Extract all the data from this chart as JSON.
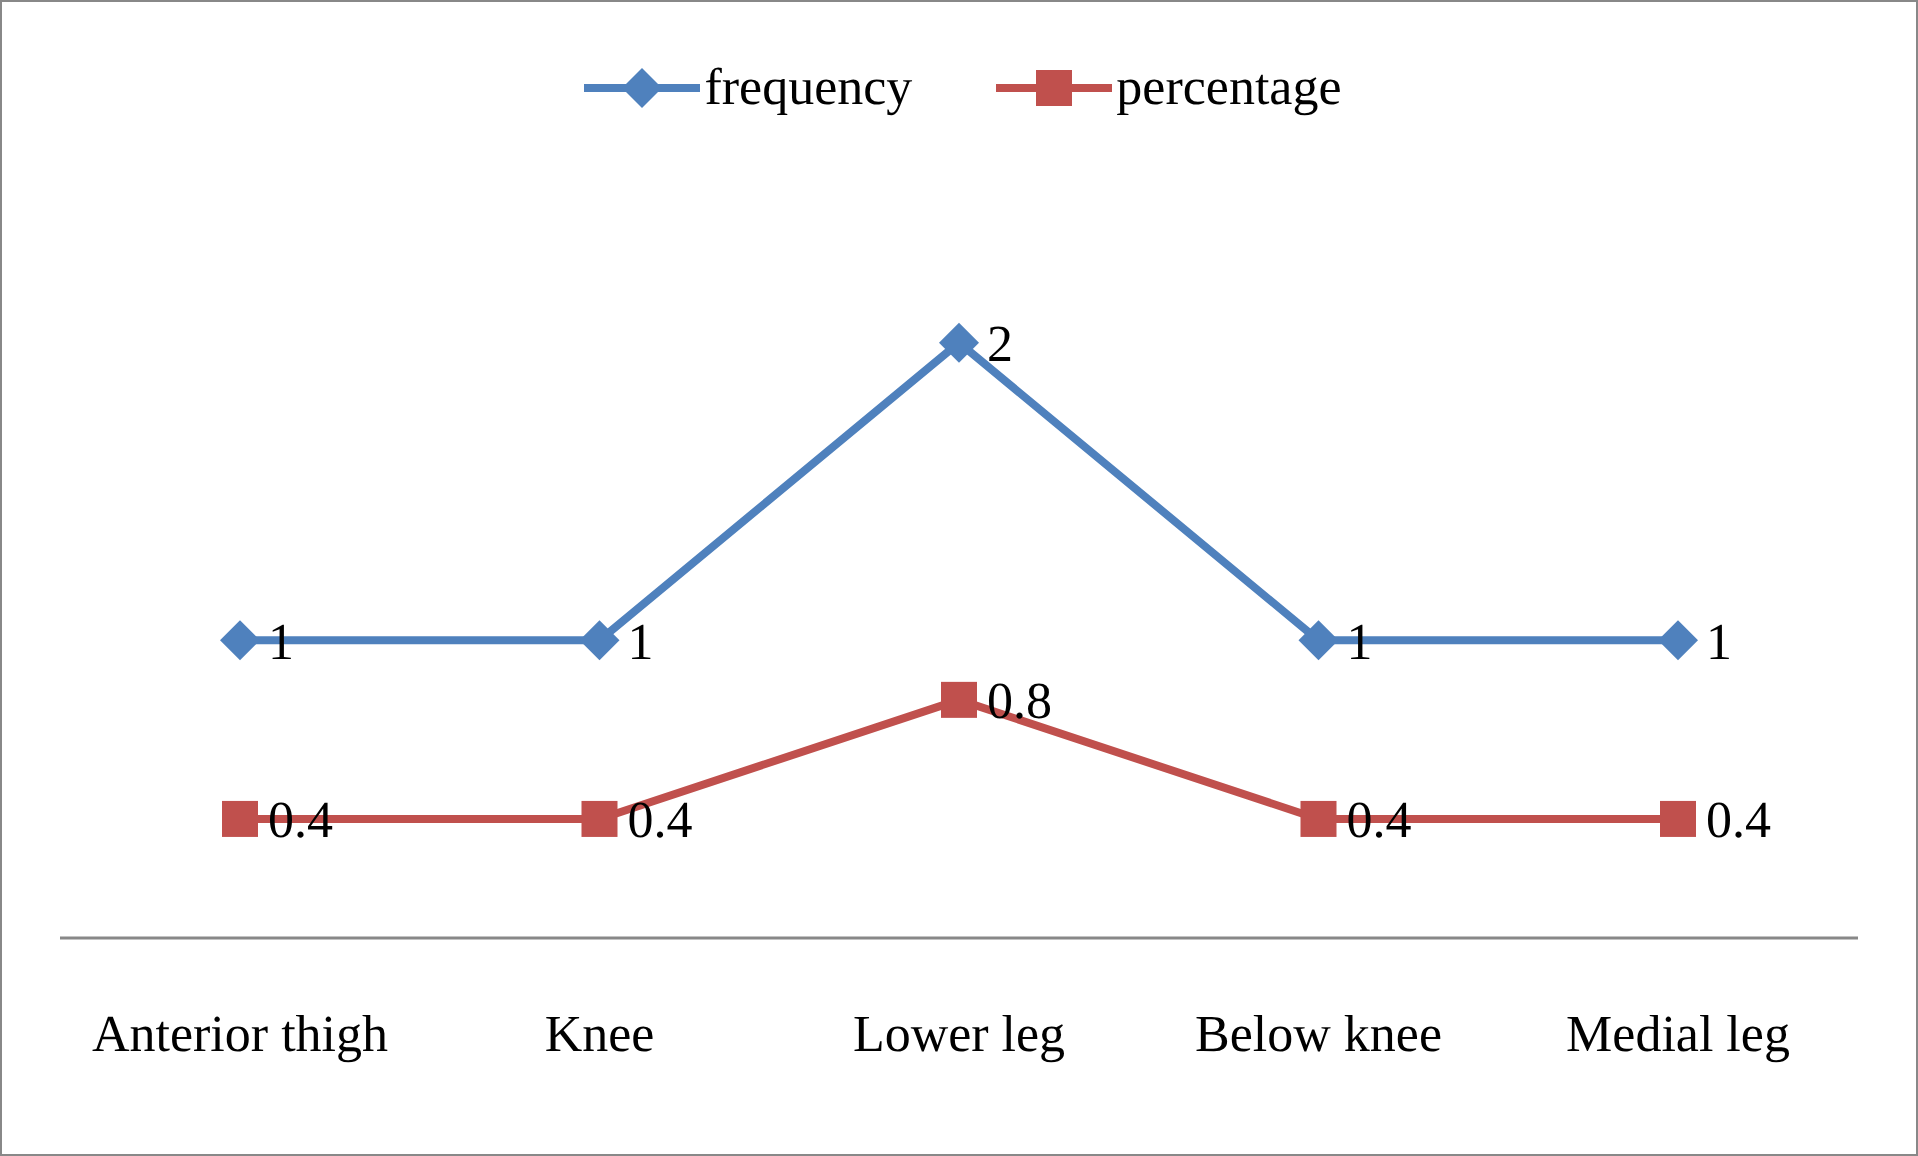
{
  "chart_data": {
    "type": "line",
    "categories": [
      "Anterior thigh",
      "Knee",
      "Lower leg",
      "Below knee",
      "Medial leg"
    ],
    "series": [
      {
        "name": "frequency",
        "color": "#4f81bd",
        "marker": "diamond",
        "values": [
          1,
          1,
          2,
          1,
          1
        ]
      },
      {
        "name": "percentage",
        "color": "#c0504d",
        "marker": "square",
        "values": [
          0.4,
          0.4,
          0.8,
          0.4,
          0.4
        ]
      }
    ],
    "data_labels": true,
    "legend": "top",
    "grid": false,
    "line_style": "solid"
  }
}
